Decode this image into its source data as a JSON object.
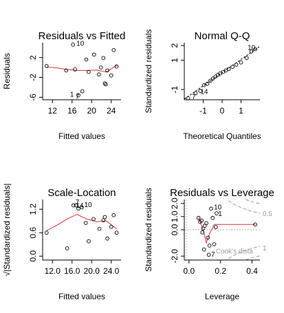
{
  "chart_data": [
    {
      "type": "scatter",
      "title": "Residuals vs Fitted",
      "xlabel": "Fitted values",
      "ylabel": "Residuals",
      "xlim": [
        10,
        26
      ],
      "ylim": [
        -6.5,
        5
      ],
      "xticks": [
        12,
        16,
        20,
        24
      ],
      "yticks": [
        -6,
        -2,
        2
      ],
      "points": [
        {
          "x": 10.8,
          "y": 0.3
        },
        {
          "x": 14.8,
          "y": -0.6
        },
        {
          "x": 16.2,
          "y": 4.6
        },
        {
          "x": 17.3,
          "y": -5.6
        },
        {
          "x": 18.1,
          "y": -4.8
        },
        {
          "x": 18.9,
          "y": 1.6
        },
        {
          "x": 19.4,
          "y": -0.9
        },
        {
          "x": 20.5,
          "y": 2.6
        },
        {
          "x": 21.5,
          "y": -1.4
        },
        {
          "x": 22.4,
          "y": 1.9
        },
        {
          "x": 22.7,
          "y": -3.2
        },
        {
          "x": 22.9,
          "y": -3.4
        },
        {
          "x": 23.2,
          "y": -0.6
        },
        {
          "x": 24.0,
          "y": -1.6
        },
        {
          "x": 24.5,
          "y": 3.5
        },
        {
          "x": 25.1,
          "y": 0.2
        },
        {
          "x": 21.9,
          "y": 0.0
        },
        {
          "x": 16.6,
          "y": -0.4
        }
      ],
      "smooth": [
        [
          10.8,
          0.1
        ],
        [
          13,
          -0.1
        ],
        [
          15,
          -0.4
        ],
        [
          17,
          -0.6
        ],
        [
          19,
          -0.6
        ],
        [
          21,
          -0.5
        ],
        [
          23,
          -0.9
        ],
        [
          25.1,
          0.4
        ]
      ],
      "labels": [
        {
          "text": "10",
          "x": 16.9,
          "y": 4.4
        },
        {
          "text": "1",
          "x": 15.6,
          "y": -5.9
        },
        {
          "text": "7",
          "x": 16.7,
          "y": -6.3
        }
      ]
    },
    {
      "type": "scatter",
      "title": "Normal Q-Q",
      "xlabel": "Theoretical Quantiles",
      "ylabel": "Standardized residuals",
      "xlim": [
        -2,
        2
      ],
      "ylim": [
        -1.7,
        2.2
      ],
      "xticks": [
        -1,
        0,
        1
      ],
      "yticks": [
        -1,
        1,
        2
      ],
      "points": [
        {
          "x": -1.8,
          "y": -1.6
        },
        {
          "x": -1.4,
          "y": -1.25
        },
        {
          "x": -1.15,
          "y": -1.1
        },
        {
          "x": -0.95,
          "y": -0.7
        },
        {
          "x": -0.78,
          "y": -0.6
        },
        {
          "x": -0.62,
          "y": -0.4
        },
        {
          "x": -0.48,
          "y": -0.25
        },
        {
          "x": -0.35,
          "y": -0.12
        },
        {
          "x": -0.22,
          "y": 0.0
        },
        {
          "x": -0.1,
          "y": 0.1
        },
        {
          "x": 0.05,
          "y": 0.2
        },
        {
          "x": 0.2,
          "y": 0.3
        },
        {
          "x": 0.35,
          "y": 0.4
        },
        {
          "x": 0.55,
          "y": 0.55
        },
        {
          "x": 0.75,
          "y": 0.7
        },
        {
          "x": 1.0,
          "y": 0.85
        },
        {
          "x": 1.3,
          "y": 1.15
        },
        {
          "x": 1.75,
          "y": 1.75
        },
        {
          "x": 1.55,
          "y": 1.6
        }
      ],
      "labels": [
        {
          "text": "10",
          "x": 1.35,
          "y": 1.7
        },
        {
          "text": "7",
          "x": -1.6,
          "y": -1.65
        },
        {
          "text": "14",
          "x": -1.15,
          "y": -1.3
        }
      ]
    },
    {
      "type": "scatter",
      "title": "Scale-Location",
      "xlabel": "Fitted values",
      "ylabel": "√|Standardized residuals|",
      "xlim": [
        10,
        26
      ],
      "ylim": [
        -0.1,
        1.45
      ],
      "xticks": [
        12,
        16,
        20,
        24
      ],
      "yticks": [
        0.0,
        0.6,
        1.2
      ],
      "points": [
        {
          "x": 10.8,
          "y": 0.6
        },
        {
          "x": 15.0,
          "y": 0.2
        },
        {
          "x": 16.3,
          "y": 1.3
        },
        {
          "x": 16.8,
          "y": 1.3
        },
        {
          "x": 17.3,
          "y": 1.22
        },
        {
          "x": 18.0,
          "y": 1.25
        },
        {
          "x": 18.8,
          "y": 0.85
        },
        {
          "x": 19.4,
          "y": 0.38
        },
        {
          "x": 20.4,
          "y": 0.95
        },
        {
          "x": 21.6,
          "y": 0.7
        },
        {
          "x": 22.4,
          "y": 0.92
        },
        {
          "x": 22.7,
          "y": 1.0
        },
        {
          "x": 23.2,
          "y": 0.45
        },
        {
          "x": 24.0,
          "y": 0.75
        },
        {
          "x": 24.5,
          "y": 1.05
        },
        {
          "x": 25.1,
          "y": 0.6
        }
      ],
      "smooth": [
        [
          10.8,
          0.65
        ],
        [
          13,
          0.8
        ],
        [
          15,
          0.95
        ],
        [
          17,
          1.07
        ],
        [
          19,
          0.95
        ],
        [
          21,
          0.88
        ],
        [
          23,
          0.9
        ],
        [
          25.1,
          0.7
        ]
      ],
      "labels": [
        {
          "text": "14",
          "x": 16.8,
          "y": 1.24
        },
        {
          "text": "7",
          "x": 16.7,
          "y": 1.33
        },
        {
          "text": "10",
          "x": 18.5,
          "y": 1.26
        }
      ]
    },
    {
      "type": "scatter",
      "title": "Residuals vs Leverage",
      "xlabel": "Leverage",
      "ylabel": "Standardized residuals",
      "xlim": [
        -0.03,
        0.45
      ],
      "ylim": [
        -2.3,
        2.3
      ],
      "xticks": [
        0.0,
        0.2,
        0.4
      ],
      "yticks": [
        -2,
        0,
        1,
        2
      ],
      "points": [
        {
          "x": 0.06,
          "y": 0.9
        },
        {
          "x": 0.07,
          "y": 0.6
        },
        {
          "x": 0.08,
          "y": 0.7
        },
        {
          "x": 0.085,
          "y": -0.2
        },
        {
          "x": 0.09,
          "y": 0.1
        },
        {
          "x": 0.095,
          "y": -1.5
        },
        {
          "x": 0.1,
          "y": 0.3
        },
        {
          "x": 0.11,
          "y": 0.5
        },
        {
          "x": 0.12,
          "y": -0.6
        },
        {
          "x": 0.125,
          "y": -1.9
        },
        {
          "x": 0.13,
          "y": -1.2
        },
        {
          "x": 0.14,
          "y": 1.6
        },
        {
          "x": 0.15,
          "y": 0.9
        },
        {
          "x": 0.16,
          "y": -1.1
        },
        {
          "x": 0.17,
          "y": 0.2
        },
        {
          "x": 0.175,
          "y": 1.25
        },
        {
          "x": 0.42,
          "y": 0.4
        }
      ],
      "smooth": [
        [
          0.06,
          0.9
        ],
        [
          0.09,
          0.0
        ],
        [
          0.11,
          -1.0
        ],
        [
          0.13,
          -0.3
        ],
        [
          0.16,
          0.4
        ],
        [
          0.25,
          0.4
        ],
        [
          0.42,
          0.4
        ]
      ],
      "cooks_levels": [
        "0.5",
        "1"
      ],
      "labels": [
        {
          "text": "10",
          "x": 0.158,
          "y": 1.55
        },
        {
          "text": "1",
          "x": 0.185,
          "y": 1.05
        },
        {
          "text": "7",
          "x": 0.14,
          "y": -2.05
        },
        {
          "text": "Cook's dista",
          "x": 0.17,
          "y": -1.8
        }
      ]
    }
  ]
}
